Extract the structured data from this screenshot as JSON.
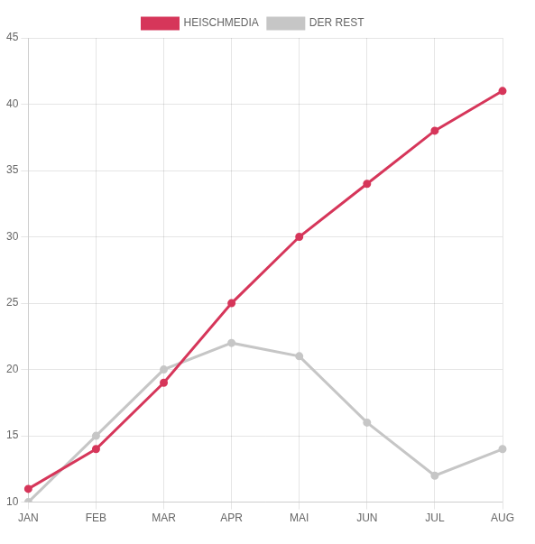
{
  "chart_data": {
    "type": "line",
    "categories": [
      "JAN",
      "FEB",
      "MAR",
      "APR",
      "MAI",
      "JUN",
      "JUL",
      "AUG"
    ],
    "series": [
      {
        "name": "HEISCHMEDIA",
        "color": "#d6365a",
        "values": [
          11,
          14,
          19,
          25,
          30,
          34,
          38,
          41
        ]
      },
      {
        "name": "DER REST",
        "color": "#c6c6c6",
        "values": [
          10,
          15,
          20,
          22,
          21,
          16,
          12,
          14
        ]
      }
    ],
    "ylim": [
      10,
      45
    ],
    "yticks": [
      10,
      15,
      20,
      25,
      30,
      35,
      40,
      45
    ],
    "grid": true,
    "legend": "top"
  }
}
